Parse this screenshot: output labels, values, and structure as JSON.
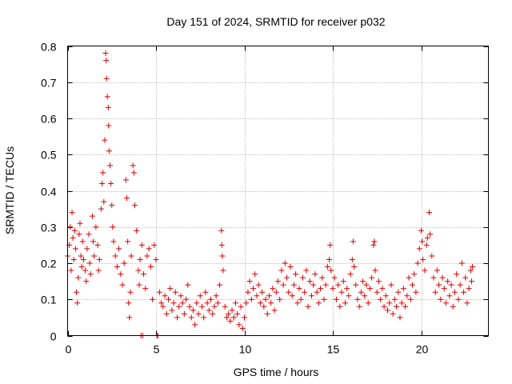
{
  "chart_data": {
    "type": "scatter",
    "title": "Day 151 of 2024, SRMTID for receiver p032",
    "xlabel": "GPS time / hours",
    "ylabel": "SRMTID / TECUs",
    "xlim": [
      0,
      23.8
    ],
    "ylim": [
      0,
      0.8
    ],
    "xticks": [
      0,
      5,
      10,
      15,
      20
    ],
    "xtick_labels": [
      "0",
      "5",
      "10",
      "15",
      "20"
    ],
    "yticks": [
      0,
      0.1,
      0.2,
      0.3,
      0.4,
      0.5,
      0.6,
      0.7,
      0.8
    ],
    "ytick_labels": [
      "0",
      "0.1",
      "0.2",
      "0.3",
      "0.4",
      "0.5",
      "0.6",
      "0.7",
      "0.8"
    ],
    "grid": true,
    "marker": "plus",
    "color": "#e00000",
    "series": [
      {
        "name": "SRMTID",
        "points": [
          [
            0.0,
            0.22
          ],
          [
            0.1,
            0.25
          ],
          [
            0.15,
            0.3
          ],
          [
            0.2,
            0.18
          ],
          [
            0.25,
            0.34
          ],
          [
            0.3,
            0.27
          ],
          [
            0.35,
            0.21
          ],
          [
            0.4,
            0.29
          ],
          [
            0.45,
            0.24
          ],
          [
            0.5,
            0.12
          ],
          [
            0.55,
            0.09
          ],
          [
            0.6,
            0.16
          ],
          [
            0.65,
            0.28
          ],
          [
            0.7,
            0.31
          ],
          [
            0.75,
            0.22
          ],
          [
            0.8,
            0.19
          ],
          [
            0.85,
            0.26
          ],
          [
            0.9,
            0.21
          ],
          [
            1.0,
            0.18
          ],
          [
            1.05,
            0.15
          ],
          [
            1.1,
            0.24
          ],
          [
            1.2,
            0.28
          ],
          [
            1.25,
            0.2
          ],
          [
            1.3,
            0.17
          ],
          [
            1.4,
            0.33
          ],
          [
            1.45,
            0.26
          ],
          [
            1.5,
            0.22
          ],
          [
            1.6,
            0.3
          ],
          [
            1.7,
            0.25
          ],
          [
            1.75,
            0.18
          ],
          [
            1.8,
            0.21
          ],
          [
            1.9,
            0.35
          ],
          [
            1.95,
            0.42
          ],
          [
            2.0,
            0.45
          ],
          [
            2.05,
            0.37
          ],
          [
            2.1,
            0.54
          ],
          [
            2.15,
            0.78
          ],
          [
            2.18,
            0.76
          ],
          [
            2.2,
            0.71
          ],
          [
            2.25,
            0.66
          ],
          [
            2.3,
            0.63
          ],
          [
            2.32,
            0.58
          ],
          [
            2.35,
            0.51
          ],
          [
            2.4,
            0.47
          ],
          [
            2.45,
            0.42
          ],
          [
            2.5,
            0.36
          ],
          [
            2.55,
            0.3
          ],
          [
            2.6,
            0.26
          ],
          [
            2.7,
            0.22
          ],
          [
            2.8,
            0.19
          ],
          [
            2.9,
            0.24
          ],
          [
            3.0,
            0.17
          ],
          [
            3.1,
            0.14
          ],
          [
            3.2,
            0.2
          ],
          [
            3.3,
            0.43
          ],
          [
            3.35,
            0.38
          ],
          [
            3.4,
            0.26
          ],
          [
            3.45,
            0.09
          ],
          [
            3.5,
            0.05
          ],
          [
            3.55,
            0.12
          ],
          [
            3.6,
            0.22
          ],
          [
            3.7,
            0.47
          ],
          [
            3.75,
            0.45
          ],
          [
            3.8,
            0.36
          ],
          [
            3.9,
            0.29
          ],
          [
            4.0,
            0.18
          ],
          [
            4.05,
            0.14
          ],
          [
            4.1,
            0.21
          ],
          [
            4.15,
            0.0
          ],
          [
            4.2,
            0.25
          ],
          [
            4.25,
            0.0
          ],
          [
            4.3,
            0.17
          ],
          [
            4.4,
            0.13
          ],
          [
            4.5,
            0.22
          ],
          [
            4.6,
            0.24
          ],
          [
            4.7,
            0.19
          ],
          [
            4.8,
            0.1
          ],
          [
            4.9,
            0.25
          ],
          [
            5.0,
            0.21
          ],
          [
            5.05,
            0.0
          ],
          [
            5.1,
            0.0
          ],
          [
            5.2,
            0.12
          ],
          [
            5.3,
            0.09
          ],
          [
            5.4,
            0.08
          ],
          [
            5.5,
            0.11
          ],
          [
            5.6,
            0.06
          ],
          [
            5.7,
            0.1
          ],
          [
            5.8,
            0.13
          ],
          [
            5.9,
            0.07
          ],
          [
            6.0,
            0.09
          ],
          [
            6.1,
            0.12
          ],
          [
            6.2,
            0.05
          ],
          [
            6.3,
            0.08
          ],
          [
            6.4,
            0.11
          ],
          [
            6.5,
            0.09
          ],
          [
            6.6,
            0.06
          ],
          [
            6.7,
            0.1
          ],
          [
            6.8,
            0.14
          ],
          [
            6.9,
            0.08
          ],
          [
            7.0,
            0.05
          ],
          [
            7.1,
            0.07
          ],
          [
            7.2,
            0.03
          ],
          [
            7.3,
            0.09
          ],
          [
            7.4,
            0.06
          ],
          [
            7.5,
            0.11
          ],
          [
            7.6,
            0.08
          ],
          [
            7.7,
            0.05
          ],
          [
            7.8,
            0.12
          ],
          [
            7.9,
            0.09
          ],
          [
            8.0,
            0.07
          ],
          [
            8.1,
            0.1
          ],
          [
            8.2,
            0.06
          ],
          [
            8.3,
            0.08
          ],
          [
            8.4,
            0.11
          ],
          [
            8.5,
            0.09
          ],
          [
            8.6,
            0.14
          ],
          [
            8.7,
            0.29
          ],
          [
            8.72,
            0.25
          ],
          [
            8.75,
            0.22
          ],
          [
            8.8,
            0.18
          ],
          [
            8.9,
            0.08
          ],
          [
            9.0,
            0.05
          ],
          [
            9.1,
            0.06
          ],
          [
            9.2,
            0.04
          ],
          [
            9.3,
            0.07
          ],
          [
            9.4,
            0.05
          ],
          [
            9.5,
            0.09
          ],
          [
            9.6,
            0.06
          ],
          [
            9.7,
            0.03
          ],
          [
            9.8,
            0.08
          ],
          [
            9.9,
            0.02
          ],
          [
            10.0,
            0.05
          ],
          [
            10.1,
            0.09
          ],
          [
            10.2,
            0.12
          ],
          [
            10.3,
            0.15
          ],
          [
            10.4,
            0.1
          ],
          [
            10.5,
            0.13
          ],
          [
            10.6,
            0.17
          ],
          [
            10.7,
            0.11
          ],
          [
            10.8,
            0.14
          ],
          [
            10.9,
            0.09
          ],
          [
            11.0,
            0.12
          ],
          [
            11.1,
            0.08
          ],
          [
            11.2,
            0.1
          ],
          [
            11.3,
            0.06
          ],
          [
            11.4,
            0.11
          ],
          [
            11.5,
            0.09
          ],
          [
            11.6,
            0.13
          ],
          [
            11.7,
            0.07
          ],
          [
            11.8,
            0.12
          ],
          [
            11.9,
            0.15
          ],
          [
            12.0,
            0.1
          ],
          [
            12.1,
            0.18
          ],
          [
            12.2,
            0.14
          ],
          [
            12.3,
            0.2
          ],
          [
            12.4,
            0.16
          ],
          [
            12.5,
            0.12
          ],
          [
            12.6,
            0.19
          ],
          [
            12.7,
            0.11
          ],
          [
            12.8,
            0.14
          ],
          [
            12.9,
            0.17
          ],
          [
            13.0,
            0.09
          ],
          [
            13.1,
            0.13
          ],
          [
            13.2,
            0.1
          ],
          [
            13.3,
            0.16
          ],
          [
            13.4,
            0.12
          ],
          [
            13.5,
            0.18
          ],
          [
            13.6,
            0.08
          ],
          [
            13.7,
            0.15
          ],
          [
            13.8,
            0.11
          ],
          [
            13.9,
            0.14
          ],
          [
            14.0,
            0.17
          ],
          [
            14.1,
            0.12
          ],
          [
            14.2,
            0.09
          ],
          [
            14.3,
            0.13
          ],
          [
            14.4,
            0.16
          ],
          [
            14.5,
            0.1
          ],
          [
            14.6,
            0.14
          ],
          [
            14.7,
            0.19
          ],
          [
            14.8,
            0.21
          ],
          [
            14.85,
            0.25
          ],
          [
            14.9,
            0.18
          ],
          [
            15.0,
            0.13
          ],
          [
            15.1,
            0.16
          ],
          [
            15.2,
            0.1
          ],
          [
            15.3,
            0.14
          ],
          [
            15.4,
            0.08
          ],
          [
            15.5,
            0.12
          ],
          [
            15.6,
            0.15
          ],
          [
            15.7,
            0.09
          ],
          [
            15.8,
            0.13
          ],
          [
            15.9,
            0.11
          ],
          [
            16.0,
            0.17
          ],
          [
            16.1,
            0.21
          ],
          [
            16.15,
            0.26
          ],
          [
            16.2,
            0.19
          ],
          [
            16.3,
            0.14
          ],
          [
            16.4,
            0.1
          ],
          [
            16.5,
            0.08
          ],
          [
            16.6,
            0.12
          ],
          [
            16.7,
            0.15
          ],
          [
            16.8,
            0.11
          ],
          [
            16.9,
            0.14
          ],
          [
            17.0,
            0.09
          ],
          [
            17.1,
            0.13
          ],
          [
            17.2,
            0.16
          ],
          [
            17.3,
            0.25
          ],
          [
            17.35,
            0.26
          ],
          [
            17.4,
            0.18
          ],
          [
            17.5,
            0.12
          ],
          [
            17.6,
            0.15
          ],
          [
            17.7,
            0.1
          ],
          [
            17.8,
            0.13
          ],
          [
            17.9,
            0.08
          ],
          [
            18.0,
            0.11
          ],
          [
            18.1,
            0.07
          ],
          [
            18.2,
            0.09
          ],
          [
            18.3,
            0.14
          ],
          [
            18.4,
            0.06
          ],
          [
            18.5,
            0.1
          ],
          [
            18.6,
            0.08
          ],
          [
            18.7,
            0.12
          ],
          [
            18.8,
            0.05
          ],
          [
            18.9,
            0.09
          ],
          [
            19.0,
            0.13
          ],
          [
            19.1,
            0.08
          ],
          [
            19.2,
            0.11
          ],
          [
            19.3,
            0.16
          ],
          [
            19.4,
            0.1
          ],
          [
            19.5,
            0.14
          ],
          [
            19.6,
            0.17
          ],
          [
            19.7,
            0.12
          ],
          [
            19.8,
            0.2
          ],
          [
            19.9,
            0.24
          ],
          [
            20.0,
            0.29
          ],
          [
            20.05,
            0.26
          ],
          [
            20.1,
            0.21
          ],
          [
            20.2,
            0.18
          ],
          [
            20.3,
            0.25
          ],
          [
            20.35,
            0.27
          ],
          [
            20.45,
            0.34
          ],
          [
            20.5,
            0.28
          ],
          [
            20.6,
            0.22
          ],
          [
            20.7,
            0.16
          ],
          [
            20.8,
            0.12
          ],
          [
            20.9,
            0.18
          ],
          [
            21.0,
            0.14
          ],
          [
            21.1,
            0.1
          ],
          [
            21.2,
            0.16
          ],
          [
            21.3,
            0.13
          ],
          [
            21.4,
            0.09
          ],
          [
            21.5,
            0.15
          ],
          [
            21.6,
            0.11
          ],
          [
            21.7,
            0.14
          ],
          [
            21.8,
            0.08
          ],
          [
            21.9,
            0.12
          ],
          [
            22.0,
            0.17
          ],
          [
            22.1,
            0.1
          ],
          [
            22.2,
            0.14
          ],
          [
            22.3,
            0.2
          ],
          [
            22.4,
            0.12
          ],
          [
            22.5,
            0.16
          ],
          [
            22.6,
            0.09
          ],
          [
            22.7,
            0.13
          ],
          [
            22.8,
            0.18
          ],
          [
            22.85,
            0.15
          ],
          [
            22.9,
            0.19
          ]
        ]
      }
    ]
  }
}
